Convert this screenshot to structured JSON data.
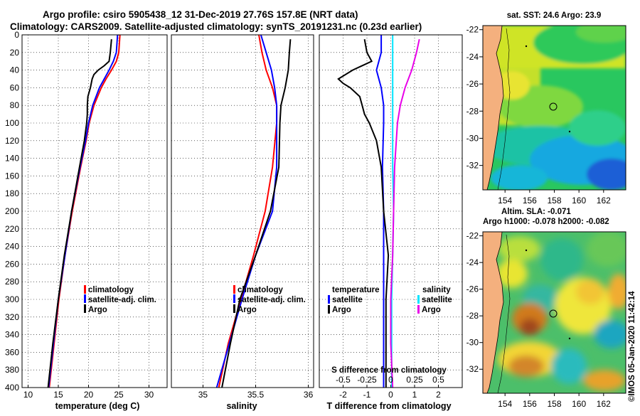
{
  "header": {
    "line1": "Argo profile: csiro 5905438_12 31-Dec-2019 27.76S 157.8E (NRT data)",
    "line2": "Climatology: CARS2009. Satellite-adjusted climatology: synTS_20191231.nc (0.23d earlier)"
  },
  "colors": {
    "climatology": "#ff0000",
    "satellite": "#0000ff",
    "argo": "#000000",
    "sat_t_diff": "#00e5ff",
    "sat_s_diff": "#e800e8",
    "land": "#f4b07e"
  },
  "depth_axis": {
    "ylim": [
      0,
      400
    ],
    "ticks": [
      "0",
      "20",
      "40",
      "60",
      "80",
      "100",
      "120",
      "140",
      "160",
      "180",
      "200",
      "220",
      "240",
      "260",
      "280",
      "300",
      "320",
      "340",
      "360",
      "380",
      "400"
    ]
  },
  "chart_data": [
    {
      "type": "line",
      "name": "temperature",
      "xlabel": "temperature (deg C)",
      "ylabel": "",
      "xlim": [
        9,
        33
      ],
      "ylim": [
        0,
        400
      ],
      "xticks": [
        "10",
        "15",
        "20",
        "25",
        "30"
      ],
      "legend": [
        "climatology",
        "satellite-adj. clim.",
        "Argo"
      ],
      "series": [
        {
          "name": "climatology",
          "color": "red",
          "depth": [
            0,
            20,
            30,
            40,
            50,
            60,
            80,
            100,
            120,
            150,
            200,
            250,
            300,
            350,
            400
          ],
          "values": [
            25.2,
            25,
            24.6,
            23.8,
            22.9,
            22.1,
            20.9,
            20.1,
            19.6,
            18.7,
            17.3,
            16.1,
            15.1,
            14.3,
            13.5
          ]
        },
        {
          "name": "satellite-adj. clim.",
          "color": "blue",
          "depth": [
            0,
            20,
            30,
            40,
            50,
            60,
            80,
            100,
            120,
            150,
            200,
            250,
            300,
            350,
            400
          ],
          "values": [
            24.8,
            24.6,
            24.1,
            23.4,
            22.6,
            21.8,
            20.7,
            20,
            19.5,
            18.6,
            17.2,
            16.1,
            15,
            14.2,
            13.4
          ]
        },
        {
          "name": "Argo",
          "color": "black",
          "depth": [
            5,
            20,
            30,
            35,
            40,
            45,
            50,
            60,
            70,
            80,
            90,
            100,
            120,
            150,
            200,
            250,
            300,
            350,
            400
          ],
          "values": [
            23.8,
            23.6,
            23.4,
            22.6,
            21.6,
            20.9,
            20.6,
            20.3,
            19.9,
            19.8,
            19.8,
            19.7,
            19.3,
            18.5,
            17.2,
            16,
            15,
            14.1,
            13.3
          ]
        }
      ]
    },
    {
      "type": "line",
      "name": "salinity",
      "xlabel": "salinity",
      "ylabel": "",
      "xlim": [
        34.7,
        36.05
      ],
      "ylim": [
        0,
        400
      ],
      "xticks": [
        "35",
        "35.5",
        "36"
      ],
      "legend": [
        "climatology",
        "satellite-adj. clim.",
        "Argo"
      ],
      "series": [
        {
          "name": "climatology",
          "color": "red",
          "depth": [
            0,
            20,
            40,
            60,
            80,
            100,
            150,
            200,
            250,
            300,
            350,
            400
          ],
          "values": [
            35.53,
            35.56,
            35.6,
            35.66,
            35.7,
            35.7,
            35.66,
            35.59,
            35.48,
            35.36,
            35.24,
            35.15
          ]
        },
        {
          "name": "satellite-adj. clim.",
          "color": "blue",
          "depth": [
            0,
            20,
            40,
            60,
            80,
            100,
            150,
            200,
            250,
            300,
            350,
            400
          ],
          "values": [
            35.55,
            35.6,
            35.65,
            35.68,
            35.7,
            35.7,
            35.7,
            35.66,
            35.5,
            35.37,
            35.25,
            35.13
          ]
        },
        {
          "name": "Argo",
          "color": "black",
          "depth": [
            5,
            20,
            40,
            60,
            80,
            100,
            150,
            200,
            250,
            300,
            350,
            400
          ],
          "values": [
            35.83,
            35.82,
            35.81,
            35.78,
            35.74,
            35.73,
            35.72,
            35.64,
            35.5,
            35.35,
            35.26,
            35.18
          ]
        }
      ]
    },
    {
      "type": "line",
      "name": "differences",
      "xlabel": "T difference from climatology",
      "xlabel_top": "S difference from climatology",
      "xlim": [
        -3,
        3
      ],
      "ylim": [
        0,
        400
      ],
      "xticks": [
        "-2",
        "-1",
        "0",
        "1",
        "2"
      ],
      "xticks_top": [
        "-0.5",
        "-0.25",
        "0",
        "0.25",
        "0.5"
      ],
      "legend_temperature": {
        "title": "temperature",
        "items": [
          "satellite",
          "Argo"
        ]
      },
      "legend_salinity": {
        "title": "salinity",
        "items": [
          "satellite",
          "Argo"
        ]
      },
      "series": [
        {
          "name": "T satellite",
          "color": "blue",
          "depth": [
            0,
            20,
            40,
            60,
            80,
            100,
            150,
            200,
            250,
            300,
            350,
            400
          ],
          "values": [
            -0.4,
            -0.4,
            -0.6,
            -0.4,
            -0.3,
            -0.3,
            -0.35,
            -0.3,
            -0.3,
            -0.3,
            -0.3,
            -0.3
          ]
        },
        {
          "name": "T Argo",
          "color": "black",
          "depth": [
            5,
            20,
            30,
            40,
            50,
            55,
            60,
            70,
            80,
            90,
            100,
            120,
            150,
            200,
            250,
            300,
            350,
            400
          ],
          "values": [
            -1.1,
            -1,
            -0.8,
            -1.6,
            -2.2,
            -2.0,
            -1.7,
            -1.3,
            -1.2,
            -1.1,
            -0.9,
            -0.6,
            -0.4,
            -0.3,
            -0.1,
            -0.2,
            -0.2,
            -0.2
          ]
        },
        {
          "name": "S satellite",
          "color": "cyan",
          "depth": [
            0,
            20,
            40,
            60,
            80,
            100,
            150,
            200,
            250,
            300,
            350,
            400
          ],
          "values": [
            0.02,
            0.02,
            0.02,
            0.02,
            0.02,
            0.02,
            0.02,
            0.03,
            0.02,
            0.01,
            0.01,
            0.01
          ]
        },
        {
          "name": "S Argo",
          "color": "magenta",
          "depth": [
            5,
            20,
            40,
            60,
            80,
            100,
            150,
            200,
            250,
            300,
            350,
            400
          ],
          "values": [
            0.3,
            0.27,
            0.22,
            0.15,
            0.1,
            0.07,
            0.04,
            0.03,
            0.02,
            0.0,
            0.0,
            0.02
          ]
        }
      ]
    }
  ],
  "maps": {
    "sst": {
      "title": "sat. SST: 24.6 Argo: 23.9",
      "yticks": [
        "-22",
        "-24",
        "-26",
        "-28",
        "-30",
        "-32"
      ],
      "xticks": [
        "154",
        "156",
        "158",
        "160",
        "162"
      ]
    },
    "sla": {
      "title1": "Altim. SLA: -0.071",
      "title2": "Argo h1000: -0.078 h2000: -0.082",
      "yticks": [
        "-22",
        "-24",
        "-26",
        "-28",
        "-30",
        "-32"
      ],
      "xticks": [
        "154",
        "156",
        "158",
        "160",
        "162"
      ]
    }
  },
  "credit": "©IMOS 05-Jan-2020 11:42:14"
}
